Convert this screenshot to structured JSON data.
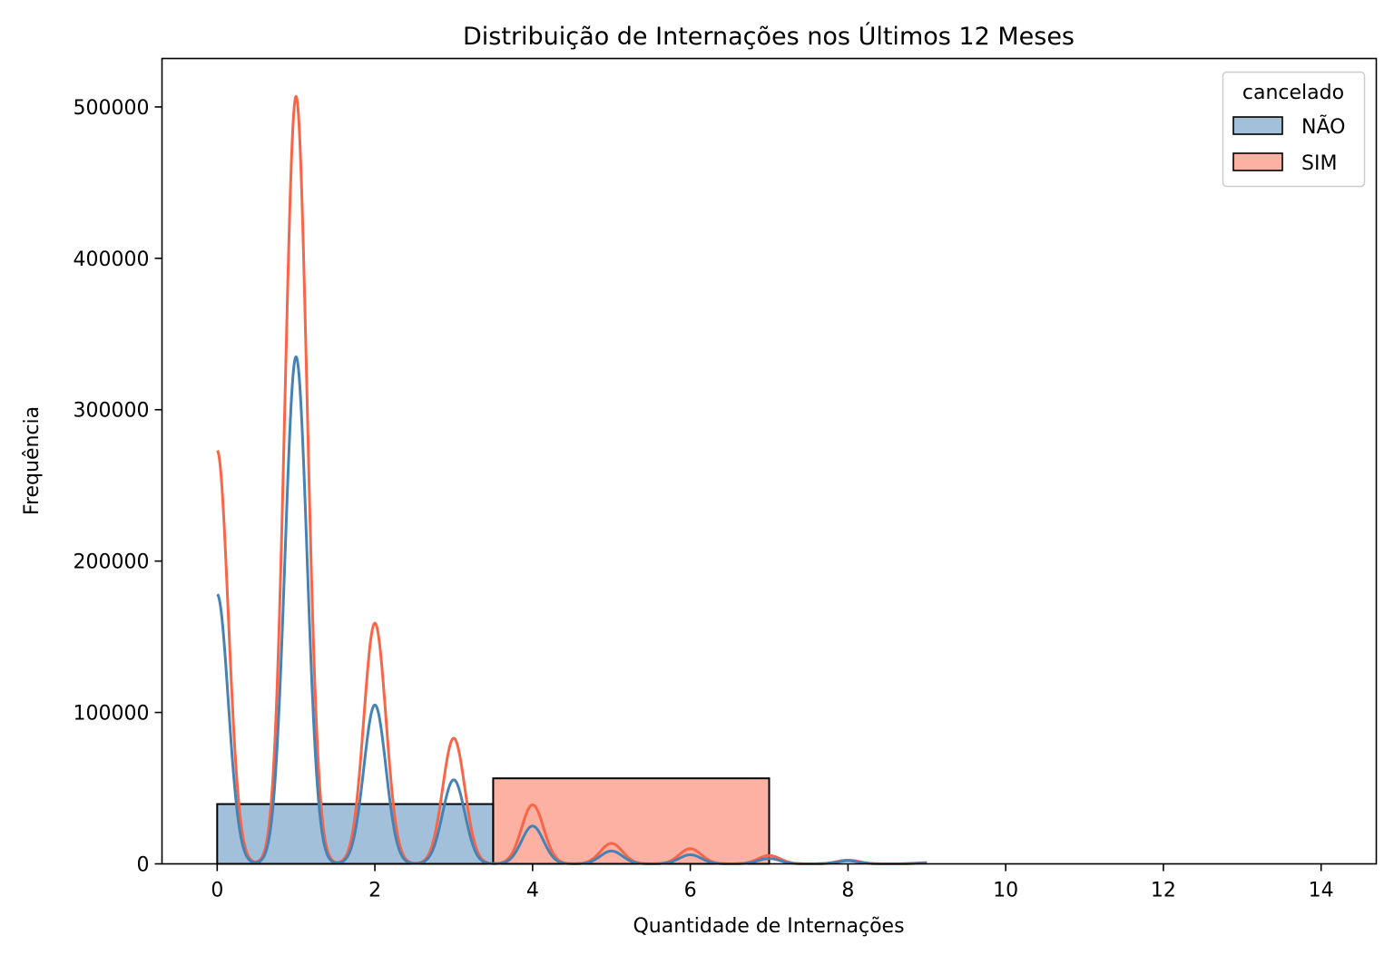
{
  "chart_data": {
    "type": "histogram",
    "title": "Distribuição de Internações nos Últimos 12 Meses",
    "xlabel": "Quantidade de Internações",
    "ylabel": "Frequência",
    "xlim": [
      -0.7,
      14.7
    ],
    "ylim": [
      0,
      532000
    ],
    "xticks": [
      0,
      2,
      4,
      6,
      8,
      10,
      12,
      14
    ],
    "yticks": [
      0,
      100000,
      200000,
      300000,
      400000,
      500000
    ],
    "legend": {
      "title": "cancelado",
      "position": "top-right"
    },
    "series": [
      {
        "name": "NÃO",
        "color": "#4682b4",
        "bars": [
          {
            "x0": 0,
            "x1": 3.5,
            "value": 39500
          }
        ],
        "kde": {
          "x0": 0,
          "x1": 9,
          "baseline": 0,
          "peaks": [
            {
              "x": 0,
              "y": 178000
            },
            {
              "x": 1,
              "y": 335000
            },
            {
              "x": 2,
              "y": 105000
            },
            {
              "x": 3,
              "y": 55500
            },
            {
              "x": 4,
              "y": 25000
            },
            {
              "x": 5,
              "y": 8500
            },
            {
              "x": 6,
              "y": 6000
            },
            {
              "x": 7,
              "y": 3500
            },
            {
              "x": 8,
              "y": 2000
            },
            {
              "x": 9,
              "y": 500
            }
          ]
        }
      },
      {
        "name": "SIM",
        "color": "#fa6447",
        "bars": [
          {
            "x0": 3.5,
            "x1": 7,
            "value": 56500
          }
        ],
        "kde": {
          "x0": 0,
          "x1": 9,
          "baseline": 0,
          "peaks": [
            {
              "x": 0,
              "y": 273000
            },
            {
              "x": 1,
              "y": 507000
            },
            {
              "x": 2,
              "y": 159000
            },
            {
              "x": 3,
              "y": 83000
            },
            {
              "x": 4,
              "y": 39000
            },
            {
              "x": 5,
              "y": 13500
            },
            {
              "x": 6,
              "y": 10000
            },
            {
              "x": 7,
              "y": 5500
            },
            {
              "x": 8,
              "y": 2500
            },
            {
              "x": 9,
              "y": 800
            }
          ]
        }
      }
    ]
  }
}
